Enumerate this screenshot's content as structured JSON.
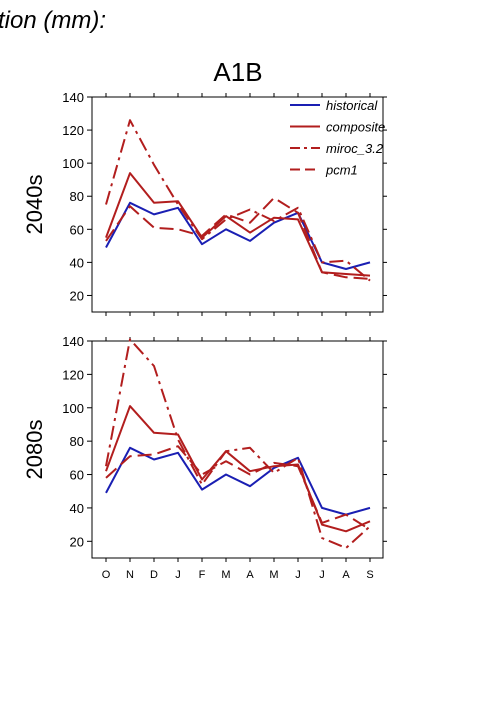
{
  "figure_title": "tion (mm):",
  "scenario_title": "A1B",
  "colors": {
    "historical": "#1a1fb3",
    "model": "#b21e1e"
  },
  "chart_data": [
    {
      "type": "line",
      "row_label": "2040s",
      "categories": [
        "O",
        "N",
        "D",
        "J",
        "F",
        "M",
        "A",
        "M",
        "J",
        "J",
        "A",
        "S"
      ],
      "ylim": [
        10,
        140
      ],
      "yticks": [
        20,
        40,
        60,
        80,
        100,
        120,
        140
      ],
      "legend_position": "top-right",
      "series": [
        {
          "name": "historical",
          "style": "solid",
          "color": "#1a1fb3",
          "values": [
            49,
            76,
            69,
            73,
            51,
            60,
            53,
            64,
            70,
            40,
            36,
            40
          ]
        },
        {
          "name": "composite",
          "style": "solid",
          "color": "#b21e1e",
          "values": [
            55,
            94,
            76,
            77,
            55,
            68,
            58,
            67,
            66,
            34,
            33,
            32
          ]
        },
        {
          "name": "miroc_3.2",
          "style": "dashdot",
          "color": "#b21e1e",
          "values": [
            75,
            126,
            99,
            75,
            54,
            66,
            72,
            65,
            73,
            40,
            41,
            29
          ]
        },
        {
          "name": "pcm1",
          "style": "dashed",
          "color": "#b21e1e",
          "values": [
            53,
            74,
            61,
            60,
            56,
            69,
            64,
            79,
            70,
            34,
            31,
            30
          ]
        }
      ]
    },
    {
      "type": "line",
      "row_label": "2080s",
      "categories": [
        "O",
        "N",
        "D",
        "J",
        "F",
        "M",
        "A",
        "M",
        "J",
        "J",
        "A",
        "S"
      ],
      "ylim": [
        10,
        140
      ],
      "yticks": [
        20,
        40,
        60,
        80,
        100,
        120,
        140
      ],
      "series": [
        {
          "name": "historical",
          "style": "solid",
          "color": "#1a1fb3",
          "values": [
            49,
            76,
            69,
            73,
            51,
            60,
            53,
            64,
            70,
            40,
            36,
            40
          ]
        },
        {
          "name": "composite",
          "style": "solid",
          "color": "#b21e1e",
          "values": [
            62,
            101,
            85,
            84,
            57,
            74,
            62,
            65,
            66,
            30,
            26,
            32
          ]
        },
        {
          "name": "miroc_3.2",
          "style": "dashdot",
          "color": "#b21e1e",
          "values": [
            65,
            141,
            125,
            81,
            54,
            74,
            76,
            61,
            70,
            22,
            16,
            29
          ]
        },
        {
          "name": "pcm1",
          "style": "dashed",
          "color": "#b21e1e",
          "values": [
            58,
            71,
            72,
            77,
            60,
            68,
            60,
            67,
            65,
            31,
            36,
            27
          ]
        }
      ]
    }
  ]
}
